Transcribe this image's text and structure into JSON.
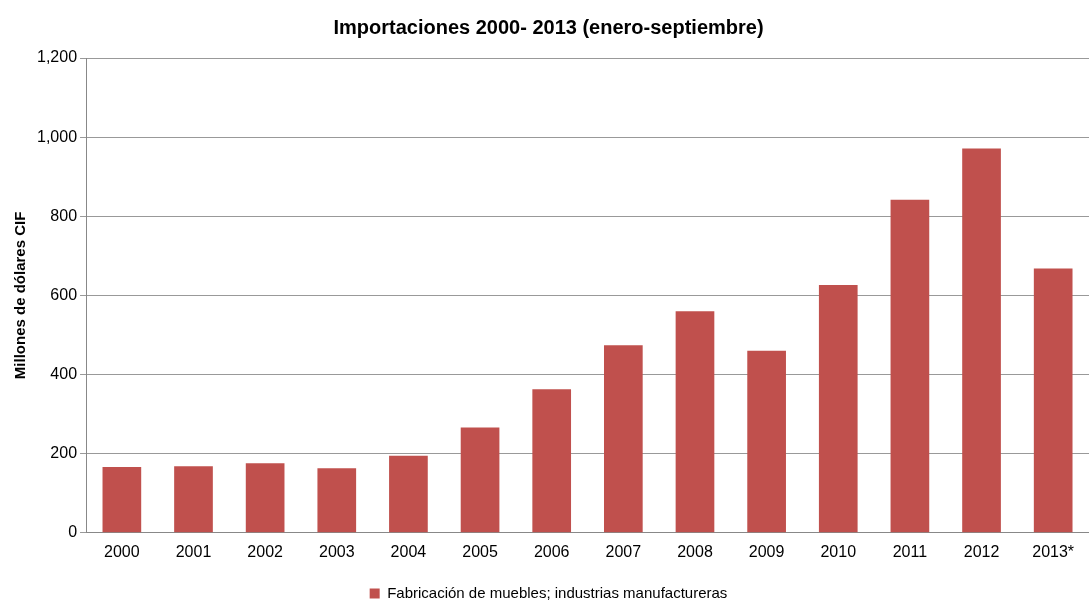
{
  "chart_data": {
    "type": "bar",
    "title": "Importaciones 2000- 2013 (enero-septiembre)",
    "ylabel": "Millones de dólares CIF",
    "categories": [
      "2000",
      "2001",
      "2002",
      "2003",
      "2004",
      "2005",
      "2006",
      "2007",
      "2008",
      "2009",
      "2010",
      "2011",
      "2012",
      "2013*"
    ],
    "series": [
      {
        "name": "Fabricación de muebles; industrias manufactureras",
        "color": "#c0504d",
        "values": [
          166,
          168,
          176,
          163,
          195,
          266,
          363,
          474,
          560,
          460,
          626,
          842,
          971,
          668
        ]
      }
    ],
    "ylim": [
      0,
      1200
    ],
    "yticks": [
      0,
      200,
      400,
      600,
      800,
      {
        "value": 1000,
        "label": "1,000"
      },
      {
        "value": 1200,
        "label": "1,200"
      }
    ],
    "grid": "y",
    "legend": "bottom"
  }
}
